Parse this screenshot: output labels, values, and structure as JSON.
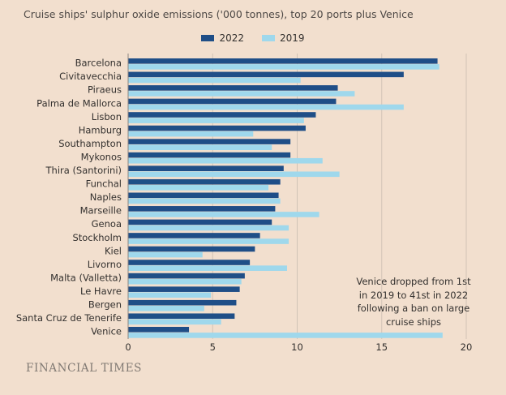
{
  "header": {
    "title": "Cruise ships' sulphur oxide emissions ('000 tonnes), top 20 ports plus Venice"
  },
  "source": {
    "logo_text": "FINANCIAL TIMES"
  },
  "annotation": {
    "lines": [
      "Venice dropped from 1st",
      "in 2019 to 41st in 2022",
      "following a ban on large",
      "cruise ships"
    ]
  },
  "colors": {
    "background": "#f2dfce",
    "series_2022": "#1f4e87",
    "series_2019": "#9fd8ec",
    "grid": "#d1c3b6",
    "text": "#33302e"
  },
  "chart_data": {
    "type": "bar",
    "orientation": "horizontal",
    "title": "Cruise ships' sulphur oxide emissions ('000 tonnes), top 20 ports plus Venice",
    "xlabel": "",
    "ylabel": "",
    "xlim": [
      0,
      20
    ],
    "xticks": [
      0,
      5,
      10,
      15,
      20
    ],
    "grid": true,
    "legend_position": "top-center",
    "categories": [
      "Barcelona",
      "Civitavecchia",
      "Piraeus",
      "Palma de Mallorca",
      "Lisbon",
      "Hamburg",
      "Southampton",
      "Mykonos",
      "Thira (Santorini)",
      "Funchal",
      "Naples",
      "Marseille",
      "Genoa",
      "Stockholm",
      "Kiel",
      "Livorno",
      "Malta (Valletta)",
      "Le Havre",
      "Bergen",
      "Santa Cruz de Tenerife",
      "Venice"
    ],
    "series": [
      {
        "name": "2022",
        "color": "#1f4e87",
        "values": [
          18.3,
          16.3,
          12.4,
          12.3,
          11.1,
          10.5,
          9.6,
          9.6,
          9.2,
          9.0,
          8.9,
          8.7,
          8.5,
          7.8,
          7.5,
          7.2,
          6.9,
          6.6,
          6.4,
          6.3,
          3.6
        ]
      },
      {
        "name": "2019",
        "color": "#9fd8ec",
        "values": [
          18.4,
          10.2,
          13.4,
          16.3,
          10.4,
          7.4,
          8.5,
          11.5,
          12.5,
          8.3,
          9.0,
          11.3,
          9.5,
          9.5,
          4.4,
          9.4,
          6.7,
          4.9,
          4.5,
          5.5,
          18.6
        ]
      }
    ]
  }
}
